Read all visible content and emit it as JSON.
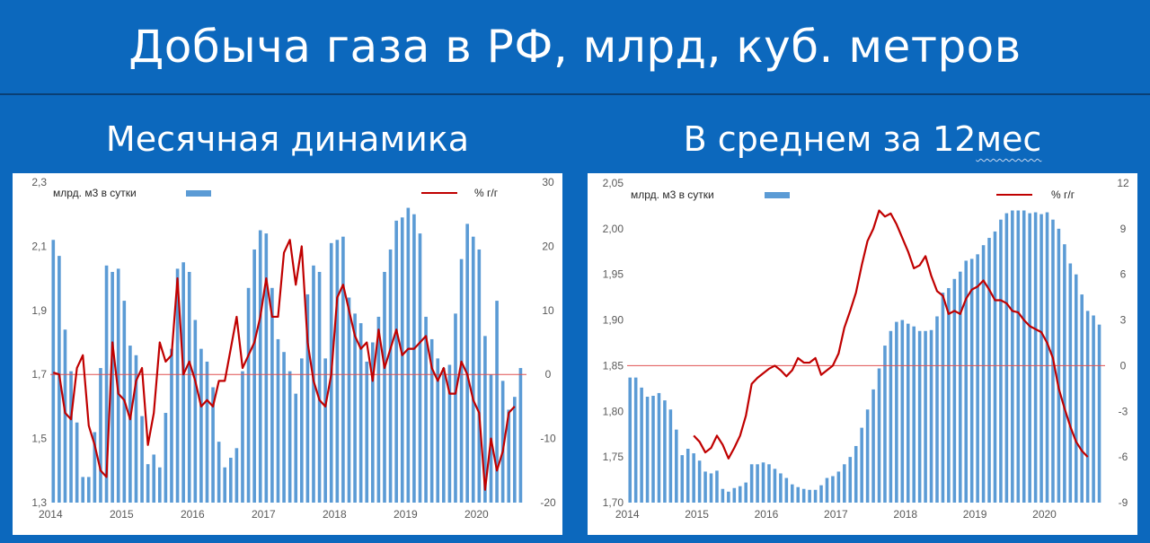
{
  "header": {
    "title": "Добыча газа в РФ, млрд, куб. метров",
    "left_subtitle": "Месячная динамика",
    "right_subtitle_a": "В среднем за 12 ",
    "right_subtitle_b": "мес"
  },
  "chart_data": [
    {
      "type": "bar",
      "id": "monthly",
      "title": "Месячная динамика",
      "legend": {
        "bars": "млрд. м3 в сутки",
        "line": "% г/г"
      },
      "x_ticks": [
        "2014",
        "2015",
        "2016",
        "2017",
        "2018",
        "2019",
        "2020"
      ],
      "y_left": {
        "min": 1.3,
        "max": 2.3,
        "ticks": [
          "2,3",
          "2,1",
          "1,9",
          "1,7",
          "1,5",
          "1,3"
        ]
      },
      "y_right": {
        "min": -20,
        "max": 30,
        "ticks": [
          "30",
          "20",
          "10",
          "0",
          "-10",
          "-20"
        ]
      },
      "start": "2014-01",
      "series": [
        {
          "name": "млрд. м3 в сутки",
          "kind": "bar",
          "color": "#5b9bd5",
          "values": [
            2.12,
            2.07,
            1.84,
            1.71,
            1.55,
            1.38,
            1.38,
            1.52,
            1.72,
            2.04,
            2.02,
            2.03,
            1.93,
            1.79,
            1.76,
            1.57,
            1.42,
            1.45,
            1.41,
            1.58,
            1.78,
            2.03,
            2.05,
            2.02,
            1.87,
            1.78,
            1.74,
            1.66,
            1.49,
            1.41,
            1.44,
            1.47,
            1.71,
            1.97,
            2.09,
            2.15,
            2.14,
            1.97,
            1.81,
            1.77,
            1.71,
            1.64,
            1.75,
            1.95,
            2.04,
            2.02,
            1.75,
            2.11,
            2.12,
            2.13,
            1.94,
            1.89,
            1.86,
            1.74,
            1.8,
            1.88,
            2.02,
            2.09,
            2.18,
            2.19,
            2.22,
            2.2,
            2.14,
            1.88,
            1.81,
            1.75,
            1.72,
            1.73,
            1.89,
            2.06,
            2.17,
            2.13,
            2.09,
            1.82,
            1.7,
            1.93,
            1.68,
            1.59,
            1.63,
            1.72
          ]
        },
        {
          "name": "% г/г",
          "kind": "line",
          "color": "#c00000",
          "values": [
            0.3,
            0,
            -6,
            -7,
            1,
            3,
            -8,
            -11,
            -15,
            -16,
            5,
            -3,
            -4,
            -7,
            -1,
            1,
            -11,
            -6,
            5,
            2,
            3,
            15,
            0,
            2,
            -1,
            -5,
            -4,
            -5,
            -1,
            -1,
            4,
            9,
            1,
            3,
            5,
            9,
            15,
            9,
            9,
            19,
            21,
            14,
            20,
            5,
            -1,
            -4,
            -5,
            0,
            12,
            14,
            10,
            6,
            4,
            5,
            -1,
            7,
            1,
            4,
            7,
            3,
            4,
            4,
            5,
            6,
            1,
            -1,
            1,
            -3,
            -3,
            2,
            0,
            -4,
            -6,
            -18,
            -10,
            -15,
            -12,
            -6,
            -5
          ]
        }
      ]
    },
    {
      "type": "bar",
      "id": "avg12",
      "title": "В среднем за 12 мес",
      "legend": {
        "bars": "млрд. м3 в сутки",
        "line": "% г/г"
      },
      "x_ticks": [
        "2014",
        "2015",
        "2016",
        "2017",
        "2018",
        "2019",
        "2020"
      ],
      "y_left": {
        "min": 1.7,
        "max": 2.05,
        "ticks": [
          "2,05",
          "2,00",
          "1,95",
          "1,90",
          "1,85",
          "1,80",
          "1,75",
          "1,70"
        ]
      },
      "y_right": {
        "min": -9,
        "max": 12,
        "ticks": [
          "12",
          "9",
          "6",
          "3",
          "0",
          "-3",
          "-6",
          "-9"
        ]
      },
      "start": "2014-01",
      "series": [
        {
          "name": "млрд. м3 в сутки",
          "kind": "bar",
          "color": "#5b9bd5",
          "values": [
            1.837,
            1.837,
            1.826,
            1.816,
            1.817,
            1.82,
            1.812,
            1.802,
            1.78,
            1.752,
            1.759,
            1.754,
            1.746,
            1.734,
            1.732,
            1.735,
            1.715,
            1.712,
            1.716,
            1.718,
            1.722,
            1.742,
            1.742,
            1.744,
            1.742,
            1.737,
            1.732,
            1.727,
            1.72,
            1.717,
            1.715,
            1.714,
            1.714,
            1.719,
            1.727,
            1.729,
            1.734,
            1.742,
            1.75,
            1.762,
            1.782,
            1.802,
            1.824,
            1.847,
            1.872,
            1.888,
            1.898,
            1.9,
            1.896,
            1.893,
            1.888,
            1.888,
            1.889,
            1.904,
            1.93,
            1.935,
            1.945,
            1.953,
            1.965,
            1.967,
            1.972,
            1.982,
            1.99,
            1.997,
            2.01,
            2.017,
            2.02,
            2.02,
            2.02,
            2.017,
            2.018,
            2.016,
            2.018,
            2.01,
            2.0,
            1.983,
            1.962,
            1.95,
            1.928,
            1.91,
            1.905,
            1.895
          ]
        },
        {
          "name": "% г/г",
          "kind": "line",
          "color": "#c00000",
          "values": [
            null,
            null,
            null,
            null,
            null,
            null,
            null,
            null,
            null,
            null,
            null,
            -4.6,
            -5.0,
            -5.7,
            -5.4,
            -4.6,
            -5.2,
            -6.1,
            -5.4,
            -4.6,
            -3.3,
            -1.2,
            -0.8,
            -0.5,
            -0.2,
            0,
            -0.3,
            -0.7,
            -0.3,
            0.5,
            0.2,
            0.2,
            0.5,
            -0.6,
            -0.3,
            0,
            0.8,
            2.5,
            3.6,
            4.8,
            6.6,
            8.2,
            9.0,
            10.2,
            9.8,
            10.0,
            9.3,
            8.4,
            7.5,
            6.4,
            6.6,
            7.2,
            5.9,
            4.9,
            4.6,
            3.4,
            3.6,
            3.4,
            4.4,
            5.0,
            5.2,
            5.6,
            5.0,
            4.3,
            4.3,
            4.1,
            3.6,
            3.5,
            3.0,
            2.6,
            2.4,
            2.2,
            1.5,
            0.5,
            -1.5,
            -2.8,
            -4.0,
            -5.0,
            -5.6,
            -6.0
          ]
        }
      ]
    }
  ]
}
